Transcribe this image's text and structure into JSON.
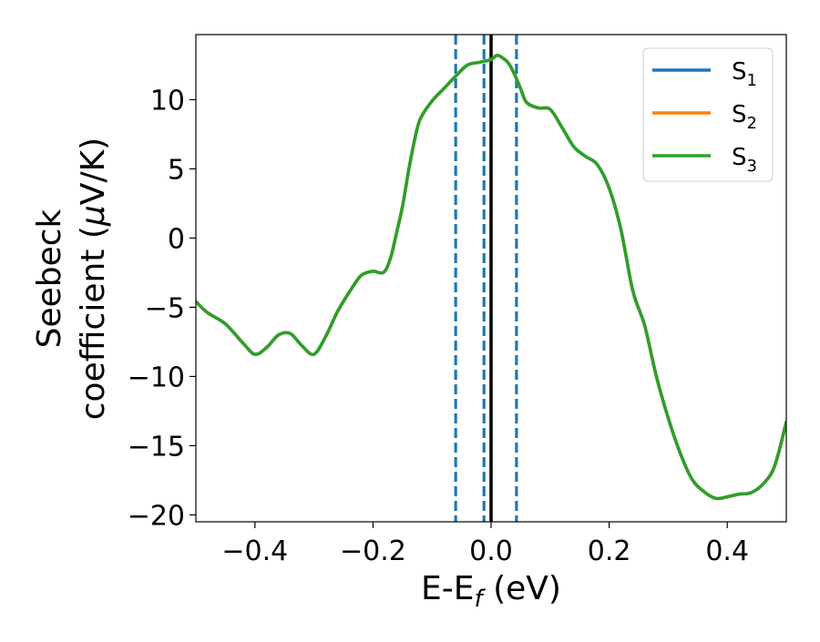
{
  "chart_data": {
    "type": "line",
    "xlabel": "E-E",
    "xlabel_sub": "f",
    "xlabel_unit": " (eV)",
    "ylabel_line1": "Seebeck",
    "ylabel_line2": "coefficient  (",
    "ylabel_mu": "μ",
    "ylabel_unit": "V/K)",
    "xlim": [
      -0.5,
      0.5
    ],
    "ylim": [
      -20.5,
      14.7
    ],
    "xticks": [
      -0.4,
      -0.2,
      0.0,
      0.2,
      0.4
    ],
    "xtick_labels": [
      "−0.4",
      "−0.2",
      "0.0",
      "0.2",
      "0.4"
    ],
    "yticks": [
      -20,
      -15,
      -10,
      -5,
      0,
      5,
      10
    ],
    "ytick_labels": [
      "−20",
      "−15",
      "−10",
      "−5",
      "0",
      "5",
      "10"
    ],
    "grid": false,
    "legend_placement": "top-right",
    "vertical_lines": [
      {
        "x": -0.06,
        "style": "dashed",
        "color": "#1f77b4"
      },
      {
        "x": -0.012,
        "style": "dashed",
        "color": "#1f77b4"
      },
      {
        "x": 0.0,
        "style": "solid",
        "color": "#000000"
      },
      {
        "x": 0.043,
        "style": "dashed",
        "color": "#1f77b4"
      }
    ],
    "x": [
      -0.5,
      -0.48,
      -0.45,
      -0.42,
      -0.4,
      -0.38,
      -0.36,
      -0.34,
      -0.32,
      -0.3,
      -0.28,
      -0.26,
      -0.24,
      -0.22,
      -0.2,
      -0.19,
      -0.18,
      -0.17,
      -0.16,
      -0.15,
      -0.14,
      -0.13,
      -0.12,
      -0.1,
      -0.08,
      -0.06,
      -0.04,
      -0.02,
      0.0,
      0.01,
      0.02,
      0.03,
      0.04,
      0.05,
      0.06,
      0.08,
      0.1,
      0.12,
      0.14,
      0.16,
      0.18,
      0.2,
      0.22,
      0.24,
      0.26,
      0.28,
      0.3,
      0.32,
      0.34,
      0.36,
      0.38,
      0.4,
      0.42,
      0.44,
      0.46,
      0.48,
      0.5
    ],
    "series": [
      {
        "name": "S",
        "name_sub": "1",
        "color": "#1f77b4",
        "values": [
          -4.6,
          -5.4,
          -6.2,
          -7.6,
          -8.4,
          -7.9,
          -7.0,
          -6.9,
          -7.8,
          -8.4,
          -7.1,
          -5.3,
          -3.9,
          -2.7,
          -2.4,
          -2.5,
          -2.4,
          -1.4,
          0.4,
          2.3,
          4.8,
          7.0,
          8.6,
          9.9,
          10.8,
          11.7,
          12.5,
          12.7,
          12.9,
          13.2,
          13.0,
          12.6,
          11.8,
          10.8,
          9.8,
          9.4,
          9.3,
          8.0,
          6.6,
          5.9,
          5.3,
          3.6,
          0.6,
          -3.8,
          -6.3,
          -10.0,
          -13.0,
          -15.5,
          -17.4,
          -18.3,
          -18.8,
          -18.7,
          -18.5,
          -18.4,
          -17.8,
          -16.5,
          -13.3
        ]
      },
      {
        "name": "S",
        "name_sub": "2",
        "color": "#ff7f0e",
        "values": [
          -4.6,
          -5.4,
          -6.2,
          -7.6,
          -8.4,
          -7.9,
          -7.0,
          -6.9,
          -7.8,
          -8.4,
          -7.1,
          -5.3,
          -3.9,
          -2.7,
          -2.4,
          -2.5,
          -2.4,
          -1.4,
          0.4,
          2.3,
          4.8,
          7.0,
          8.6,
          9.9,
          10.8,
          11.7,
          12.5,
          12.7,
          12.9,
          13.2,
          13.0,
          12.6,
          11.8,
          10.8,
          9.8,
          9.4,
          9.3,
          8.0,
          6.6,
          5.9,
          5.3,
          3.6,
          0.6,
          -3.8,
          -6.3,
          -10.0,
          -13.0,
          -15.5,
          -17.4,
          -18.3,
          -18.8,
          -18.7,
          -18.5,
          -18.4,
          -17.8,
          -16.5,
          -13.3
        ]
      },
      {
        "name": "S",
        "name_sub": "3",
        "color": "#2ca02c",
        "values": [
          -4.6,
          -5.4,
          -6.2,
          -7.6,
          -8.4,
          -7.9,
          -7.0,
          -6.9,
          -7.8,
          -8.4,
          -7.1,
          -5.3,
          -3.9,
          -2.7,
          -2.4,
          -2.5,
          -2.4,
          -1.4,
          0.4,
          2.3,
          4.8,
          7.0,
          8.6,
          9.9,
          10.8,
          11.7,
          12.5,
          12.7,
          12.9,
          13.2,
          13.0,
          12.6,
          11.8,
          10.8,
          9.8,
          9.4,
          9.3,
          8.0,
          6.6,
          5.9,
          5.3,
          3.6,
          0.6,
          -3.8,
          -6.3,
          -10.0,
          -13.0,
          -15.5,
          -17.4,
          -18.3,
          -18.8,
          -18.7,
          -18.5,
          -18.4,
          -17.8,
          -16.5,
          -13.3
        ]
      }
    ]
  }
}
